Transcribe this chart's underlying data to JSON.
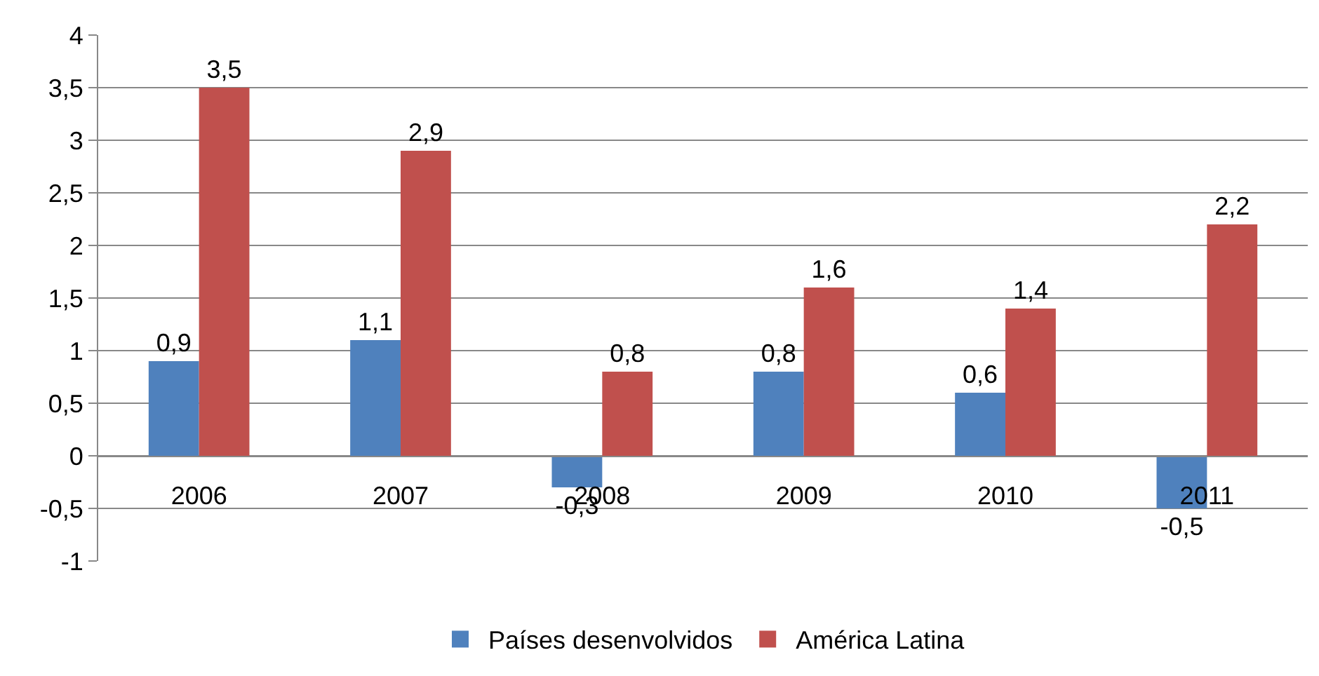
{
  "chart_data": {
    "type": "bar",
    "categories": [
      "2006",
      "2007",
      "2008",
      "2009",
      "2010",
      "2011"
    ],
    "series": [
      {
        "name": "Países desenvolvidos",
        "color": "#4f81bd",
        "values": [
          0.9,
          1.1,
          -0.3,
          0.8,
          0.6,
          -0.5
        ],
        "value_labels": [
          "0,9",
          "1,1",
          "-0,3",
          "0,8",
          "0,6",
          "-0,5"
        ]
      },
      {
        "name": "América Latina",
        "color": "#c0504d",
        "values": [
          3.5,
          2.9,
          0.8,
          1.6,
          1.4,
          2.2
        ],
        "value_labels": [
          "3,5",
          "2,9",
          "0,8",
          "1,6",
          "1,4",
          "2,2"
        ]
      }
    ],
    "ylim": [
      -1,
      4
    ],
    "yticks": [
      4,
      {
        "value": 3.5,
        "label": "3,5"
      },
      3,
      {
        "value": 2.5,
        "label": "2,5"
      },
      2,
      {
        "value": 1.5,
        "label": "1,5"
      },
      1,
      {
        "value": 0.5,
        "label": "0,5"
      },
      0,
      {
        "value": -0.5,
        "label": "-0,5"
      },
      -1
    ],
    "grid": "y",
    "legend": "bottom"
  }
}
